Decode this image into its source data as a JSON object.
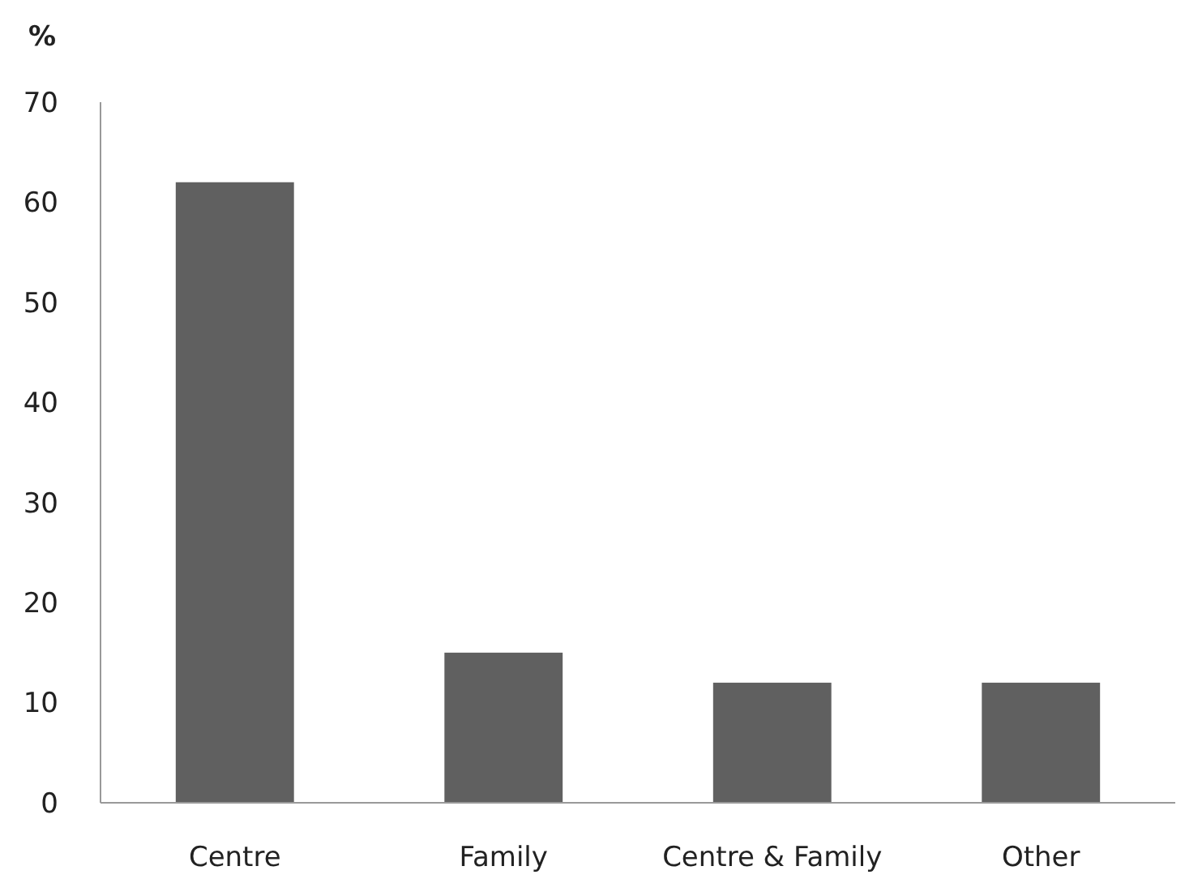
{
  "chart_data": {
    "type": "bar",
    "ylabel": "%",
    "categories": [
      "Centre",
      "Family",
      "Centre & Family",
      "Other"
    ],
    "values": [
      62,
      15,
      12,
      12
    ],
    "color": "#606060",
    "ylim": [
      0,
      70
    ],
    "yticks": [
      0,
      10,
      20,
      30,
      40,
      50,
      60,
      70
    ],
    "grid": false
  }
}
